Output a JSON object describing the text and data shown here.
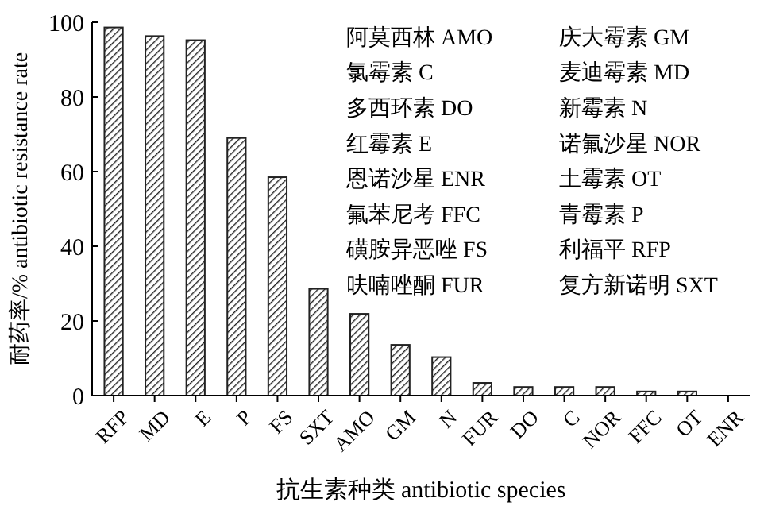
{
  "chart_data": {
    "type": "bar",
    "xlabel": "抗生素种类 antibiotic species",
    "ylabel": "耐药率/% antibiotic resistance rate",
    "categories": [
      "RFP",
      "MD",
      "E",
      "P",
      "FS",
      "SXT",
      "AMO",
      "GM",
      "N",
      "FUR",
      "DO",
      "C",
      "NOR",
      "FFC",
      "OT",
      "ENR"
    ],
    "values": [
      98.6,
      96.3,
      95.2,
      69,
      58.5,
      28.6,
      21.9,
      13.6,
      10.3,
      3.4,
      2.3,
      2.3,
      2.3,
      1.1,
      1.1,
      0
    ],
    "color": "#222222",
    "ylim": [
      0,
      100
    ],
    "yticks": [
      0,
      20,
      40,
      60,
      80,
      100
    ],
    "grid": false,
    "annotations": [
      "阿莫西林 AMO",
      "氯霉素 C",
      "多西环素 DO",
      "红霉素 E",
      "恩诺沙星 ENR",
      "氟苯尼考 FFC",
      "磺胺异恶唑 FS",
      "呋喃唑酮 FUR",
      "庆大霉素 GM",
      "麦迪霉素 MD",
      "新霉素 N",
      "诺氟沙星 NOR",
      "土霉素 OT",
      "青霉素 P",
      "利福平 RFP",
      "复方新诺明 SXT"
    ]
  }
}
